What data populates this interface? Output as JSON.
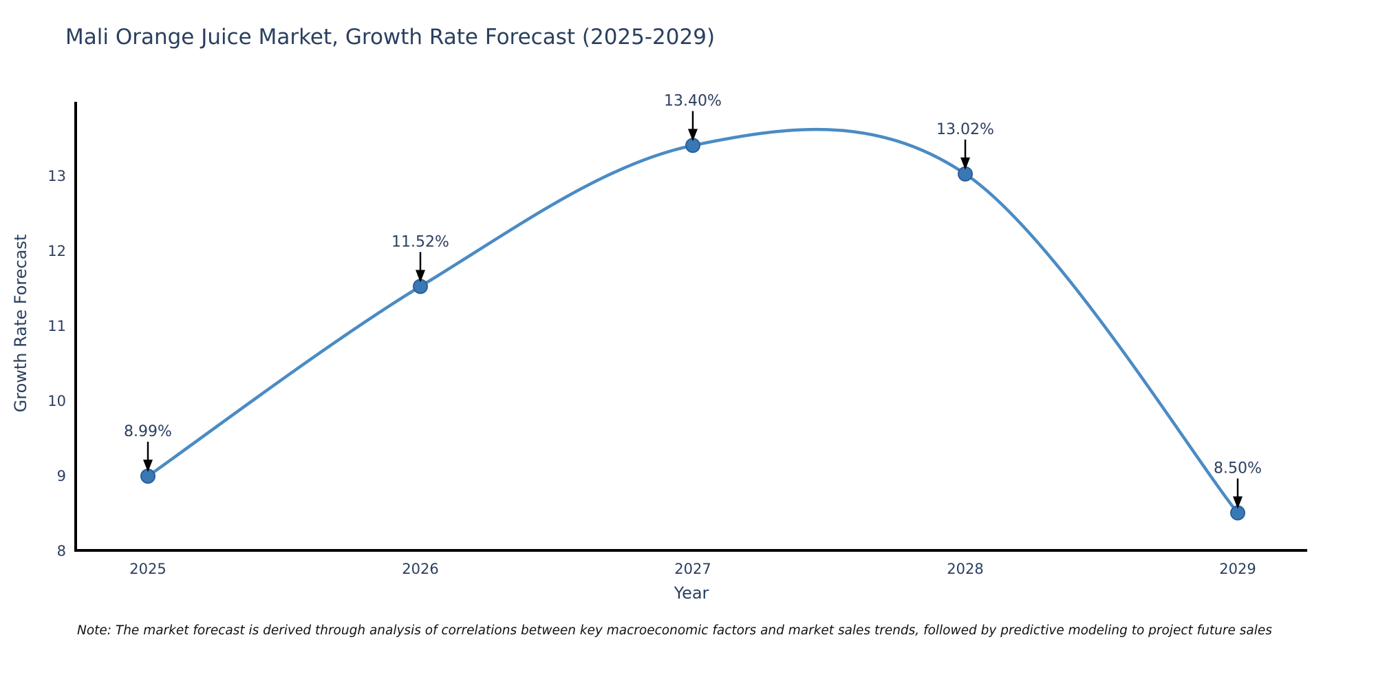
{
  "title": "Mali Orange Juice Market, Growth Rate Forecast (2025-2029)",
  "note": "Note: The market forecast is derived through analysis of correlations between key macroeconomic factors and market sales trends, followed by predictive modeling to project future sales",
  "chart_data": {
    "type": "line",
    "title": "Mali Orange Juice Market, Growth Rate Forecast (2025-2029)",
    "xlabel": "Year",
    "ylabel": "Growth Rate Forecast",
    "x": [
      2025,
      2026,
      2027,
      2028,
      2029
    ],
    "values": [
      8.99,
      11.52,
      13.4,
      13.02,
      8.5
    ],
    "point_labels": [
      "8.99%",
      "11.52%",
      "13.40%",
      "13.02%",
      "8.50%"
    ],
    "yticks": [
      8,
      9,
      10,
      11,
      12,
      13
    ],
    "xticks": [
      "2025",
      "2026",
      "2027",
      "2028",
      "2029"
    ],
    "ylim": [
      8,
      14
    ],
    "line_shape": "spline",
    "grid": false,
    "legend_position": "none",
    "colors": {
      "line": "#4a8bc4",
      "marker_fill": "#3a78b5",
      "marker_edge": "#2a5f97",
      "axis_line": "#000000",
      "tick_text": "#2a3f5f",
      "annotation_text": "#2a3f5f",
      "annotation_arrow": "#000000",
      "title_text": "#2a3f5f",
      "note_text": "#111111"
    }
  }
}
